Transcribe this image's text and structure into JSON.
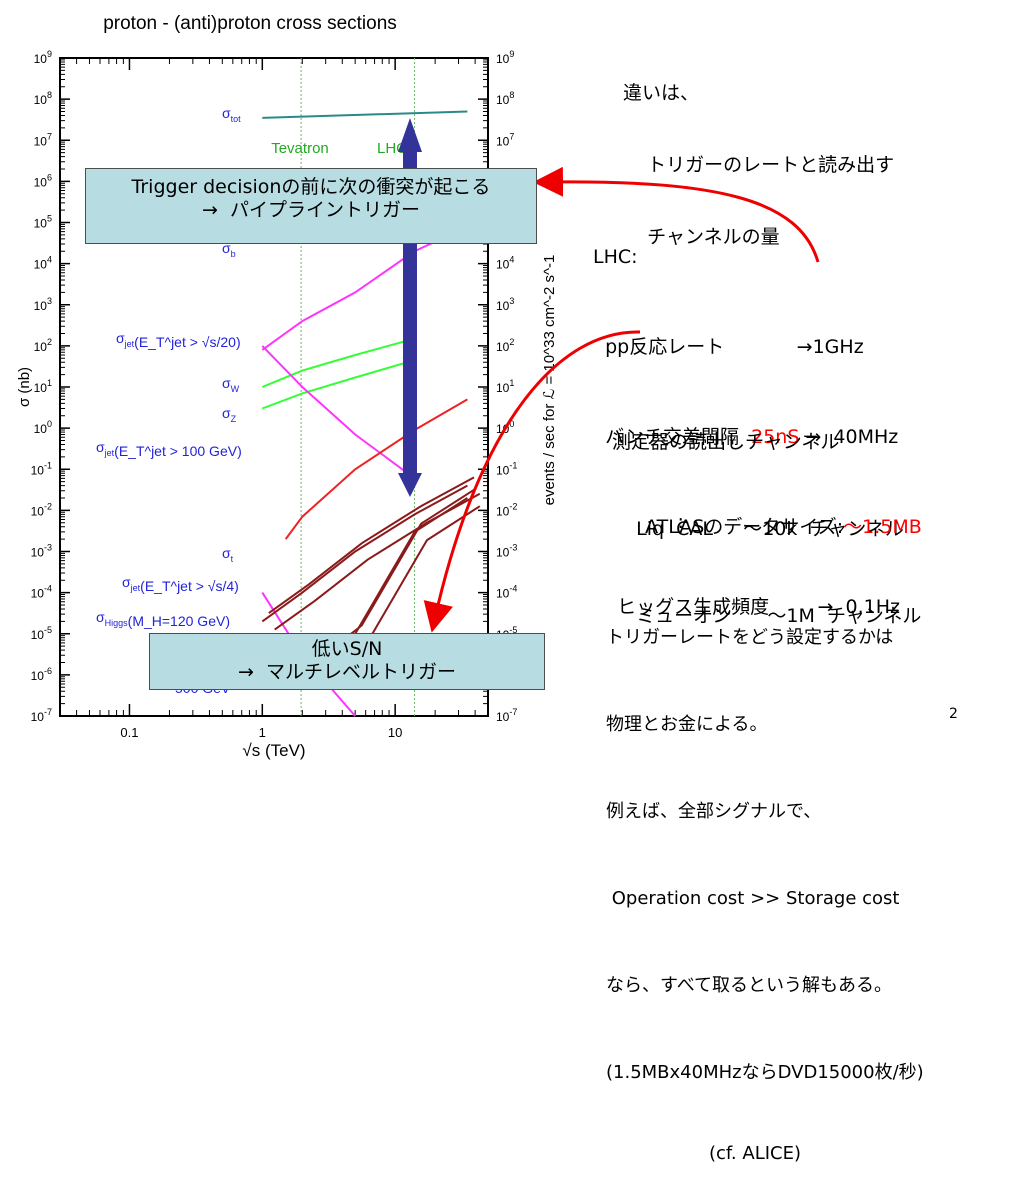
{
  "chart_data": {
    "type": "line",
    "title": "proton - (anti)proton cross sections",
    "xlabel": "√s (TeV)",
    "ylabel": "σ (nb)",
    "ylabel_right": "events / sec for ℒ = 10^33 cm^-2 s^-1",
    "xscale": "log",
    "yscale": "log",
    "xlim": [
      0.03,
      50
    ],
    "ylim": [
      1e-07,
      1000000000.0
    ],
    "x_ticks": [
      "0.1",
      "1",
      "10"
    ],
    "y_ticks": [
      "10^-7",
      "10^-6",
      "10^-5",
      "10^-4",
      "10^-3",
      "10^-2",
      "10^-1",
      "10^0",
      "10^1",
      "10^2",
      "10^3",
      "10^4",
      "10^5",
      "10^6",
      "10^7",
      "10^8",
      "10^9"
    ],
    "y_ticks_right": [
      "10^-7",
      "10^-6",
      "10^-5",
      "10^-4",
      "10^-3",
      "10^-2",
      "10^-1",
      "10^0",
      "10^1",
      "10^2",
      "10^3",
      "10^4",
      "10^5",
      "10^6",
      "10^7",
      "10^8",
      "10^9"
    ],
    "vertical_lines": [
      {
        "label": "Tevatron",
        "x": 1.96
      },
      {
        "label": "LHC",
        "x": 14
      }
    ],
    "curve_labels": [
      {
        "base": "σ",
        "sub": "tot",
        "sup": "",
        "suffix": ""
      },
      {
        "base": "σ",
        "sub": "b",
        "sup": "",
        "suffix": ""
      },
      {
        "base": "σ",
        "sub": "jet",
        "sup": "",
        "suffix": "(E_T^jet > √s/20)"
      },
      {
        "base": "σ",
        "sub": "W",
        "sup": "",
        "suffix": ""
      },
      {
        "base": "σ",
        "sub": "Z",
        "sup": "",
        "suffix": ""
      },
      {
        "base": "σ",
        "sub": "jet",
        "sup": "",
        "suffix": "(E_T^jet > 100 GeV)"
      },
      {
        "base": "σ",
        "sub": "t",
        "sup": "",
        "suffix": ""
      },
      {
        "base": "σ",
        "sub": "jet",
        "sup": "",
        "suffix": "(E_T^jet > √s/4)"
      },
      {
        "base": "σ",
        "sub": "Higgs",
        "sup": "",
        "suffix": "(M_H=120 GeV)"
      },
      {
        "base": "",
        "sub": "",
        "sup": "",
        "suffix": "500 GeV"
      }
    ],
    "series": [
      {
        "name": "σtot",
        "color": "#2a8a8a",
        "x": [
          1,
          35
        ],
        "y": [
          35000000.0,
          50000000.0
        ]
      },
      {
        "name": "σjet(ET jet > √s/20)",
        "color": "#ff33ff",
        "x": [
          1,
          2,
          5,
          14,
          35
        ],
        "y": [
          80,
          400,
          2000,
          20000,
          80000
        ]
      },
      {
        "name": "σW",
        "color": "#33ff33",
        "x": [
          1,
          2,
          5,
          14
        ],
        "y": [
          10,
          25,
          60,
          150
        ]
      },
      {
        "name": "σZ",
        "color": "#33ff33",
        "x": [
          1,
          2,
          5,
          14
        ],
        "y": [
          3,
          7,
          17,
          45
        ]
      },
      {
        "name": "σjet(ET jet > 100 GeV)",
        "color": "#ff33ff",
        "x": [
          1,
          2,
          5,
          14
        ],
        "y": [
          100,
          10,
          0.7,
          0.06
        ]
      },
      {
        "name": "σt",
        "color": "#ee2222",
        "x": [
          1.5,
          2,
          5,
          14,
          35
        ],
        "y": [
          0.002,
          0.007,
          0.1,
          0.9,
          5
        ]
      },
      {
        "name": "σjet(ET jet > √s/4)",
        "color": "#ff33ff",
        "x": [
          1,
          2,
          5
        ],
        "y": [
          0.0001,
          3e-06,
          1e-07
        ]
      },
      {
        "name": "σHiggs(MH=120 GeV)",
        "color": "#8b1a1a",
        "x": [
          1,
          2,
          5,
          14,
          35
        ],
        "y": [
          2e-05,
          0.0001,
          0.001,
          0.008,
          0.04
        ]
      },
      {
        "name": "σHiggs(MH=500 GeV)",
        "color": "#8b1a1a",
        "x": [
          2,
          5,
          14,
          35
        ],
        "y": [
          1e-06,
          1e-05,
          0.003,
          0.02
        ]
      }
    ]
  },
  "slide": {
    "intro_lines": [
      "違いは、",
      "    トリガーのレートと読み出す",
      "    チャンネルの量"
    ],
    "lhc_lines": [
      {
        "pre": "LHC:",
        "red": "",
        "post": ""
      },
      {
        "pre": "  pp反応レート            →1GHz",
        "red": "",
        "post": ""
      },
      {
        "pre": "  バンチ交差間隔  ",
        "red": "25nS",
        "post": " →  40MHz"
      },
      {
        "pre": "              :",
        "red": "",
        "post": ""
      },
      {
        "pre": "    ヒッグス生成頻度        →  0.1Hz",
        "red": "",
        "post": ""
      }
    ],
    "detector_lines": [
      "測定器の読出しチャンネル",
      "    Liq  CAL     ～10k  チャンネル",
      "    ミューオン      ～1M  チャンネル"
    ],
    "atlas_label": "ATLASのデータサイズ:",
    "atlas_value": "～1.5MB",
    "trigger_lines": [
      "トリガーレートをどう設定するかは",
      "物理とお金による。",
      "例えば、全部シグナルで、",
      " Operation cost >> Storage cost",
      "なら、すべて取るという解もある。",
      "(1.5MBx40MHzならDVD15000枚/秒)",
      "                  (cf. ALICE)"
    ],
    "box_top": [
      "Trigger decisionの前に次の衝突が起こる",
      "→  パイプライントリガー"
    ],
    "box_bottom": [
      "低いS/N",
      "→  マルチレベルトリガー"
    ],
    "page_number": "2"
  },
  "colors": {
    "arrow_red": "#ee0000",
    "arrow_blue": "#333399",
    "box_fill": "#b7dde3",
    "vline_green": "#66bb66",
    "label_blue": "#2222dd"
  }
}
